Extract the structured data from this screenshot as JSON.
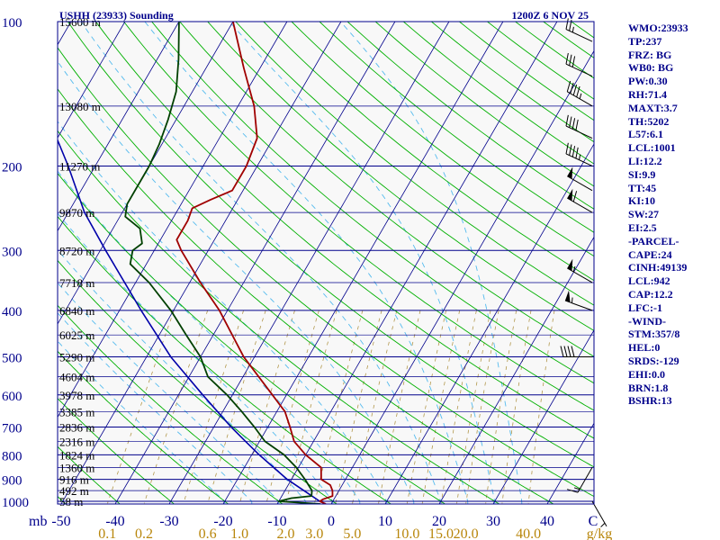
{
  "chart_data": {
    "type": "skew-t log-p sounding",
    "title_left": "USHH (23933) Sounding",
    "title_right": "1200Z  6 NOV 25",
    "y_axis_unit_label": "mb",
    "x_axis_unit_label": "C",
    "mixing_ratio_unit_label": "g/kg",
    "pressure_levels": [
      100,
      200,
      300,
      400,
      500,
      600,
      700,
      800,
      900,
      1000
    ],
    "height_levels": [
      {
        "p": 100,
        "label": "15600 m"
      },
      {
        "p": 150,
        "label": "13080 m"
      },
      {
        "p": 200,
        "label": "11270 m"
      },
      {
        "p": 250,
        "label": "9870 m"
      },
      {
        "p": 300,
        "label": "8720 m"
      },
      {
        "p": 350,
        "label": "7718 m"
      },
      {
        "p": 400,
        "label": "6840 m"
      },
      {
        "p": 450,
        "label": "6025 m"
      },
      {
        "p": 500,
        "label": "5290 m"
      },
      {
        "p": 550,
        "label": "4604 m"
      },
      {
        "p": 600,
        "label": "3978 m"
      },
      {
        "p": 650,
        "label": "3385 m"
      },
      {
        "p": 700,
        "label": "2836 m"
      },
      {
        "p": 750,
        "label": "2316 m"
      },
      {
        "p": 800,
        "label": "1824 m"
      },
      {
        "p": 850,
        "label": "1360 m"
      },
      {
        "p": 900,
        "label": "916 m"
      },
      {
        "p": 950,
        "label": "492 m"
      },
      {
        "p": 1000,
        "label": "58 m"
      }
    ],
    "temperature_ticks": [
      "-50",
      "-40",
      "-30",
      "-20",
      "-10",
      "0",
      "10",
      "20",
      "30",
      "40"
    ],
    "mixing_ratio_ticks": [
      "0.1",
      "0.2",
      "0.6",
      "1.0",
      "2.0",
      "3.0",
      "5.0",
      "10.0",
      "15.0",
      "20.0",
      "40.0"
    ],
    "temperature_profile": [
      {
        "p": 1013,
        "t": -1.0
      },
      {
        "p": 1000,
        "t": -2.4
      },
      {
        "p": 990,
        "t": -2.0
      },
      {
        "p": 975,
        "t": -0.6
      },
      {
        "p": 950,
        "t": -1.2
      },
      {
        "p": 925,
        "t": -2.2
      },
      {
        "p": 900,
        "t": -4.5
      },
      {
        "p": 850,
        "t": -5.8
      },
      {
        "p": 800,
        "t": -10.0
      },
      {
        "p": 750,
        "t": -13.6
      },
      {
        "p": 700,
        "t": -15.9
      },
      {
        "p": 650,
        "t": -18.5
      },
      {
        "p": 600,
        "t": -22.6
      },
      {
        "p": 500,
        "t": -32.0
      },
      {
        "p": 400,
        "t": -41.5
      },
      {
        "p": 350,
        "t": -48.0
      },
      {
        "p": 300,
        "t": -55.0
      },
      {
        "p": 285,
        "t": -57.0
      },
      {
        "p": 260,
        "t": -57.0
      },
      {
        "p": 245,
        "t": -57.5
      },
      {
        "p": 235,
        "t": -55.0
      },
      {
        "p": 225,
        "t": -52.0
      },
      {
        "p": 200,
        "t": -52.0
      },
      {
        "p": 175,
        "t": -53.0
      },
      {
        "p": 150,
        "t": -57.0
      },
      {
        "p": 125,
        "t": -63.0
      },
      {
        "p": 100,
        "t": -70.0
      }
    ],
    "dewpoint_profile": [
      {
        "p": 1013,
        "t": -2.0
      },
      {
        "p": 1000,
        "t": -10.0
      },
      {
        "p": 985,
        "t": -8.0
      },
      {
        "p": 975,
        "t": -4.5
      },
      {
        "p": 950,
        "t": -5.0
      },
      {
        "p": 900,
        "t": -7.5
      },
      {
        "p": 850,
        "t": -10.4
      },
      {
        "p": 800,
        "t": -14.0
      },
      {
        "p": 750,
        "t": -19.0
      },
      {
        "p": 700,
        "t": -22.5
      },
      {
        "p": 650,
        "t": -26.5
      },
      {
        "p": 600,
        "t": -31.0
      },
      {
        "p": 550,
        "t": -36.5
      },
      {
        "p": 500,
        "t": -40.0
      },
      {
        "p": 450,
        "t": -45.0
      },
      {
        "p": 400,
        "t": -50.5
      },
      {
        "p": 350,
        "t": -57.5
      },
      {
        "p": 320,
        "t": -63.0
      },
      {
        "p": 300,
        "t": -64.0
      },
      {
        "p": 290,
        "t": -63.0
      },
      {
        "p": 270,
        "t": -65.0
      },
      {
        "p": 255,
        "t": -69.0
      },
      {
        "p": 240,
        "t": -70.0
      },
      {
        "p": 220,
        "t": -70.0
      },
      {
        "p": 200,
        "t": -70.0
      },
      {
        "p": 180,
        "t": -70.5
      },
      {
        "p": 160,
        "t": -71.5
      },
      {
        "p": 140,
        "t": -73.0
      },
      {
        "p": 120,
        "t": -76.0
      },
      {
        "p": 100,
        "t": -80.0
      }
    ],
    "parcel_profile": [
      {
        "p": 1000,
        "t": -2.4
      },
      {
        "p": 950,
        "t": -6.5
      },
      {
        "p": 900,
        "t": -10.8
      },
      {
        "p": 850,
        "t": -14.6
      },
      {
        "p": 800,
        "t": -18.6
      },
      {
        "p": 750,
        "t": -22.6
      },
      {
        "p": 700,
        "t": -26.8
      },
      {
        "p": 600,
        "t": -35.5
      },
      {
        "p": 500,
        "t": -45.5
      },
      {
        "p": 400,
        "t": -56.0
      },
      {
        "p": 300,
        "t": -69.0
      },
      {
        "p": 250,
        "t": -77.0
      },
      {
        "p": 200,
        "t": -85.0
      },
      {
        "p": 150,
        "t": -96.0
      },
      {
        "p": 120,
        "t": -103.0
      },
      {
        "p": 100,
        "t": -107.0
      }
    ],
    "wind_barbs": [
      {
        "p": 1000,
        "dir": 150,
        "kt": 5
      },
      {
        "p": 850,
        "dir": 210,
        "kt": 15
      },
      {
        "p": 500,
        "dir": 270,
        "kt": 40
      },
      {
        "p": 400,
        "dir": 290,
        "kt": 55
      },
      {
        "p": 350,
        "dir": 300,
        "kt": 55
      },
      {
        "p": 250,
        "dir": 300,
        "kt": 60
      },
      {
        "p": 225,
        "dir": 300,
        "kt": 50
      },
      {
        "p": 200,
        "dir": 295,
        "kt": 45
      },
      {
        "p": 175,
        "dir": 295,
        "kt": 40
      },
      {
        "p": 150,
        "dir": 300,
        "kt": 45
      },
      {
        "p": 130,
        "dir": 295,
        "kt": 30
      },
      {
        "p": 110,
        "dir": 295,
        "kt": 25
      }
    ],
    "colors": {
      "temperature": "#a00000",
      "dewpoint": "#004000",
      "parcel": "#0000aa",
      "isobar": "#00008b",
      "isotherm": "#00008b",
      "dry_adiabat": "#00b000",
      "moist_adiabat": "#55bbee",
      "mixing_ratio": "#a08020",
      "tick_labels": "#00008b",
      "mixing_ratio_labels": "#b8860b",
      "background": "#ffffff",
      "plot_background": "#f8f8f8"
    }
  },
  "indices": [
    "WMO:23933",
    "TP:237",
    "FRZ: BG",
    "WB0: BG",
    "PW:0.30",
    "RH:71.4",
    "MAXT:3.7",
    "TH:5202",
    "L57:6.1",
    "LCL:1001",
    "LI:12.2",
    "SI:9.9",
    "TT:45",
    "KI:10",
    "SW:27",
    "EI:2.5",
    "-PARCEL-",
    "CAPE:24",
    "CINH:49139",
    "LCL:942",
    "CAP:12.2",
    "LFC:-1",
    "-WIND-",
    "STM:357/8",
    "HEL:0",
    "SRDS:-129",
    "EHI:0.0",
    "BRN:1.8",
    "BSHR:13"
  ]
}
